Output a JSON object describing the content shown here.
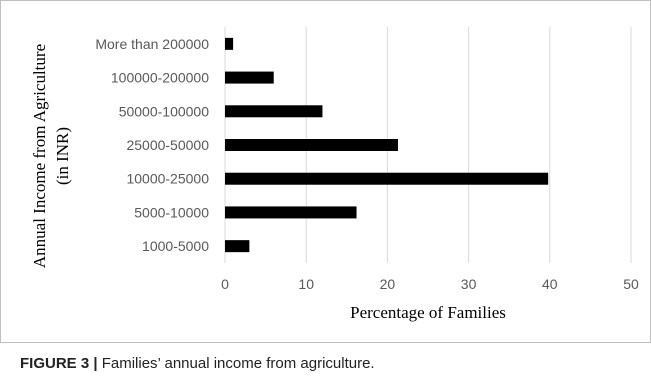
{
  "caption": {
    "label": "FIGURE 3 |",
    "text": " Families’ annual income from agriculture."
  },
  "colors": {
    "bar": "#000000",
    "grid": "#d9d9d9",
    "frame": "#bfbfbf",
    "tick_text": "#595959"
  },
  "chart_data": {
    "type": "bar",
    "orientation": "horizontal",
    "categories": [
      "More than 200000",
      "100000-200000",
      "50000-100000",
      "25000-50000",
      "10000-25000",
      "5000-10000",
      "1000-5000"
    ],
    "values": [
      1,
      6,
      12,
      21.3,
      39.8,
      16.2,
      3
    ],
    "xlabel": "Percentage of Families",
    "ylabel_lines": [
      "Annual Income from Agriculture",
      "(in INR)"
    ],
    "xlim": [
      0,
      50
    ],
    "xticks": [
      0,
      10,
      20,
      30,
      40,
      50
    ],
    "grid": true,
    "legend": false
  }
}
